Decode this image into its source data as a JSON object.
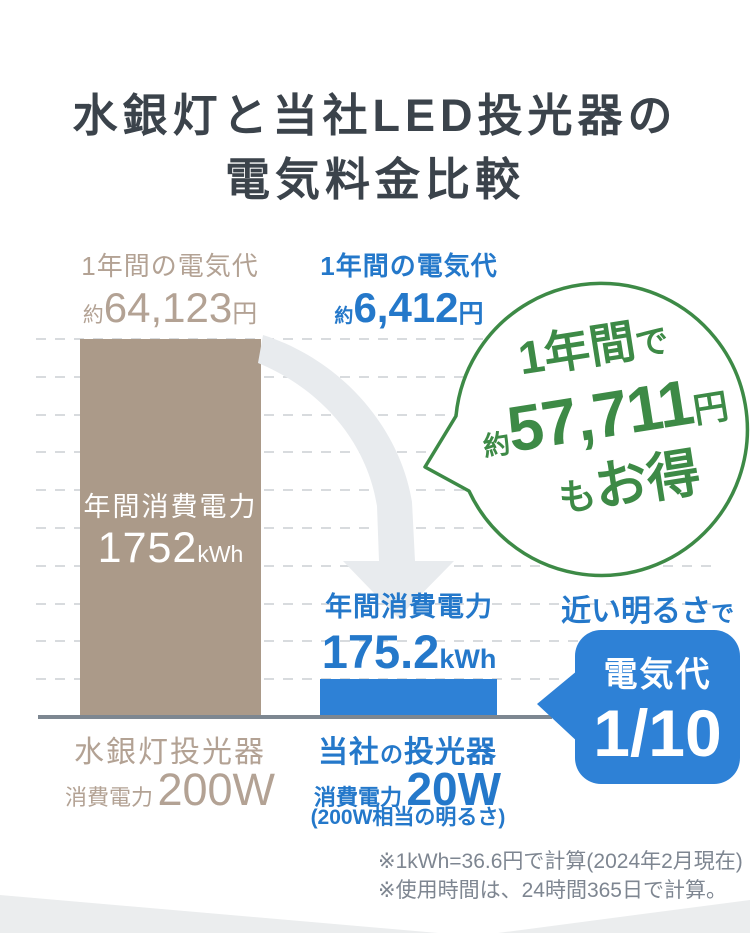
{
  "page_title": {
    "line1": "水銀灯と当社LED投光器の",
    "line2": "電気料金比較"
  },
  "chart_data": {
    "type": "bar",
    "title": "水銀灯と当社LED投光器の電気料金比較",
    "categories": [
      "水銀灯投光器",
      "当社の投光器"
    ],
    "series": [
      {
        "name": "年間消費電力 (kWh)",
        "values": [
          1752,
          175.2
        ]
      }
    ],
    "annual_cost_yen": [
      64123,
      6412
    ],
    "power_w": [
      200,
      20
    ],
    "ylabel": "年間消費電力",
    "ylim": [
      0,
      1752
    ],
    "gridline_count": 10,
    "grid": "dashed",
    "bar_colors": [
      "#ab9a89",
      "#2e81d6"
    ]
  },
  "mercury": {
    "cost_title": "1年間の電気代",
    "approx": "約",
    "cost_value": "64,123",
    "yen": "円",
    "consumption_title": "年間消費電力",
    "consumption_value": "1752",
    "consumption_unit": "kWh",
    "name": "水銀灯投光器",
    "power_label": "消費電力",
    "power_value": "200W"
  },
  "led": {
    "cost_title": "1年間の電気代",
    "approx": "約",
    "cost_value": "6,412",
    "yen": "円",
    "consumption_title": "年間消費電力",
    "consumption_value": "175.2",
    "consumption_unit": "kWh",
    "name_head": "当社",
    "name_no": "の",
    "name_tail": "投光器",
    "power_label": "消費電力",
    "power_value": "20W",
    "power_note": "(200W相当の明るさ)"
  },
  "savings_bubble": {
    "line1": "1年間",
    "line1_small": "で",
    "approx": "約",
    "amount": "57,711",
    "yen": "円",
    "line3_small": "も",
    "line3": "お得"
  },
  "ratio_badge": {
    "heading": "近い明るさ",
    "heading_small": "で",
    "label": "電気代",
    "value": "1/10"
  },
  "footnotes": [
    "※1kWh=36.6円で計算(2024年2月現在)",
    "※使用時間は、24時間365日で計算。"
  ],
  "colors": {
    "title_text": "#3b434b",
    "mercury_bar": "#ab9a89",
    "mercury_text": "#b3a294",
    "led_fill": "#2e81d6",
    "led_text": "#2478ca",
    "green": "#3d8a46",
    "gridline": "#d8dbde",
    "axis": "#7d8791",
    "footnote_gray": "#7e8691",
    "swoosh_gray": "#e8ebee",
    "wedge_gray": "#ebedee"
  }
}
